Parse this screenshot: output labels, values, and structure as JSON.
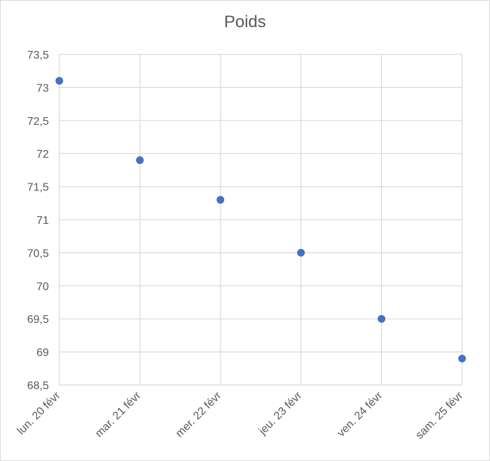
{
  "chart_data": {
    "type": "scatter",
    "title": "Poids",
    "xlabel": "",
    "ylabel": "",
    "x": [
      "lun. 20 févr",
      "mar. 21 févr",
      "mer. 22 févr",
      "jeu. 23 févr",
      "ven. 24 févr",
      "sam. 25 févr"
    ],
    "y": [
      73.1,
      71.9,
      71.3,
      70.5,
      69.5,
      68.9
    ],
    "ylim": [
      68.5,
      73.5
    ],
    "y_ticks": [
      "68,5",
      "69",
      "69,5",
      "70",
      "70,5",
      "71",
      "71,5",
      "72",
      "72,5",
      "73",
      "73,5"
    ],
    "y_tick_values": [
      68.5,
      69,
      69.5,
      70,
      70.5,
      71,
      71.5,
      72,
      72.5,
      73,
      73.5
    ],
    "grid": true,
    "legend": "none",
    "marker_color": "#4472c4",
    "gridline_color": "#d9d9d9"
  }
}
